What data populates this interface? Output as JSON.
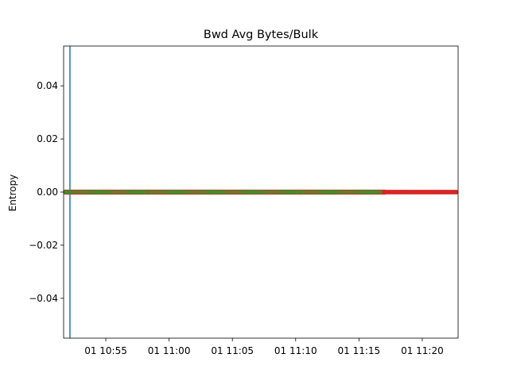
{
  "chart_data": {
    "type": "scatter",
    "title": "Bwd Avg Bytes/Bulk",
    "xlabel": "",
    "ylabel": "Entropy",
    "x_axis": {
      "start": "01 10:51:40",
      "end": "01 11:22:50",
      "ticks": [
        "01 10:55",
        "01 11:00",
        "01 11:05",
        "01 11:10",
        "01 11:15",
        "01 11:20"
      ],
      "tick_minutes": [
        655,
        660,
        665,
        670,
        675,
        680
      ]
    },
    "ylim": [
      -0.055,
      0.055
    ],
    "y_ticks": [
      "0.04",
      "0.02",
      "0.00",
      "−0.02",
      "−0.04"
    ],
    "y_tick_values": [
      0.04,
      0.02,
      0.0,
      -0.02,
      -0.04
    ],
    "vertical_line": {
      "x": "01 10:52:10",
      "color": "#1f77b4"
    },
    "series": [
      {
        "color": "#2ca02c",
        "edge_color": "#d62728",
        "x_start": "01 10:51:50",
        "x_end": "01 11:17:00",
        "y": 0.0
      },
      {
        "color": "#d62728",
        "x_start": "01 11:17:00",
        "x_end": "01 11:22:40",
        "y": 0.0
      }
    ],
    "grid": false,
    "legend": "none"
  }
}
